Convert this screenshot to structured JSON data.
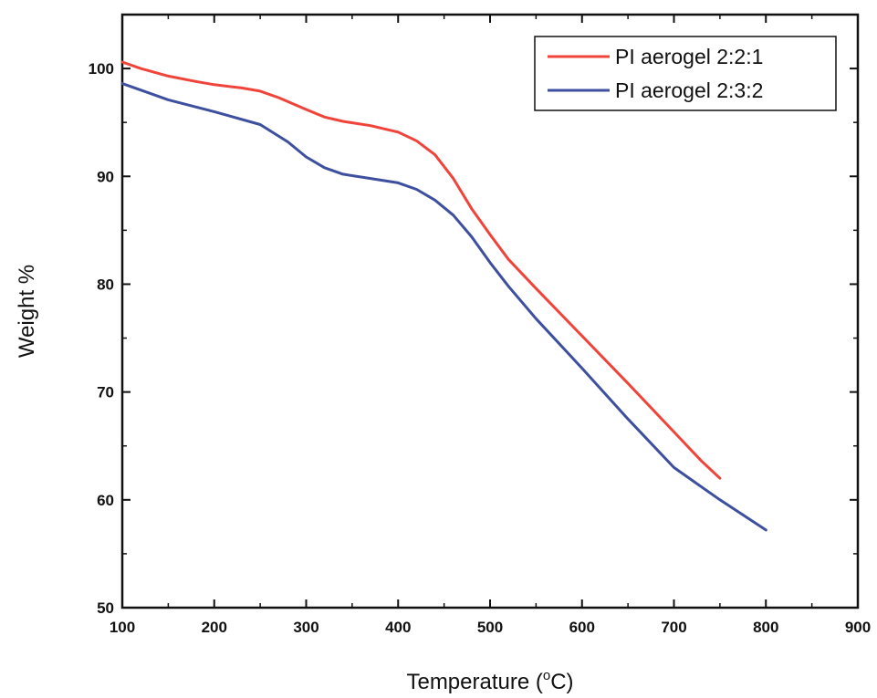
{
  "chart_data": {
    "type": "line",
    "xlabel_prefix": "Temperature (",
    "xlabel_degree": "o",
    "xlabel_suffix": "C)",
    "ylabel": "Weight %",
    "xlim": [
      100,
      900
    ],
    "ylim": [
      50,
      105
    ],
    "xticks": [
      100,
      200,
      300,
      400,
      500,
      600,
      700,
      800,
      900
    ],
    "yticks": [
      50,
      60,
      70,
      80,
      90,
      100
    ],
    "grid": false,
    "legend_position": "top-right",
    "series": [
      {
        "name": "PI aerogel 2:2:1",
        "color": "#f0443a",
        "x": [
          100,
          120,
          150,
          180,
          200,
          230,
          250,
          270,
          300,
          320,
          340,
          370,
          400,
          420,
          440,
          460,
          480,
          500,
          520,
          550,
          600,
          650,
          700,
          730,
          750
        ],
        "y": [
          100.6,
          100.0,
          99.3,
          98.8,
          98.5,
          98.2,
          97.9,
          97.3,
          96.2,
          95.5,
          95.1,
          94.7,
          94.1,
          93.3,
          92.0,
          89.8,
          87.0,
          84.6,
          82.3,
          79.6,
          75.2,
          70.8,
          66.3,
          63.6,
          62.0
        ]
      },
      {
        "name": "PI aerogel 2:3:2",
        "color": "#3d4f9e",
        "x": [
          100,
          120,
          150,
          200,
          250,
          280,
          300,
          320,
          340,
          370,
          400,
          420,
          440,
          460,
          480,
          500,
          520,
          550,
          600,
          650,
          700,
          750,
          800
        ],
        "y": [
          98.6,
          98.0,
          97.1,
          96.0,
          94.8,
          93.2,
          91.8,
          90.8,
          90.2,
          89.8,
          89.4,
          88.8,
          87.8,
          86.4,
          84.4,
          82.0,
          79.8,
          76.8,
          72.2,
          67.5,
          63.0,
          60.0,
          57.2
        ]
      }
    ]
  }
}
